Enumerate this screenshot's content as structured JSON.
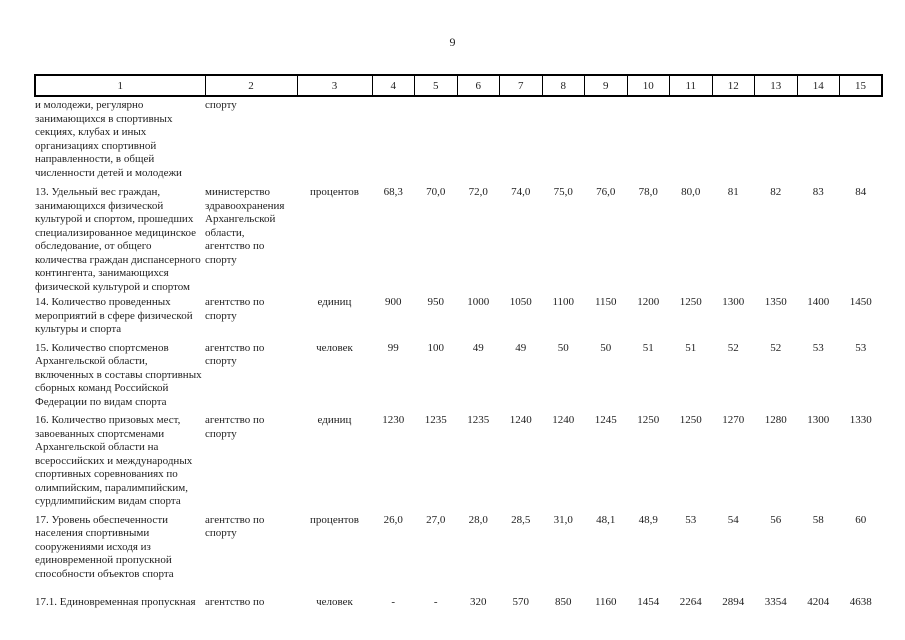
{
  "page": {
    "number": "9"
  },
  "table": {
    "header_cols": [
      "1",
      "2",
      "3",
      "4",
      "5",
      "6",
      "7",
      "8",
      "9",
      "10",
      "11",
      "12",
      "13",
      "14",
      "15"
    ],
    "rows": [
      {
        "indicator": "и молодежи, регулярно\nзанимающихся в спортивных\nсекциях, клубах и иных\nорганизациях спортивной\nнаправленности, в общей\nчисленности детей и молодежи",
        "executor": "спорту",
        "unit": "",
        "values": [
          "",
          "",
          "",
          "",
          "",
          "",
          "",
          "",
          "",
          "",
          "",
          ""
        ]
      },
      {
        "indicator": "13. Удельный вес граждан,\nзанимающихся физической\nкультурой и спортом, прошедших\nспециализированное медицинское\nобследование, от общего\nколичества граждан диспансерного\nконтингента, занимающихся\nфизической культурой и спортом",
        "executor": "министерство\nздравоохранения\nАрхангельской\nобласти,\nагентство по\nспорту",
        "unit": "процентов",
        "values": [
          "68,3",
          "70,0",
          "72,0",
          "74,0",
          "75,0",
          "76,0",
          "78,0",
          "80,0",
          "81",
          "82",
          "83",
          "84"
        ]
      },
      {
        "indicator": "14. Количество проведенных\nмероприятий в сфере физической\nкультуры и спорта",
        "executor": "агентство по\nспорту",
        "unit": "единиц",
        "values": [
          "900",
          "950",
          "1000",
          "1050",
          "1100",
          "1150",
          "1200",
          "1250",
          "1300",
          "1350",
          "1400",
          "1450"
        ]
      },
      {
        "indicator": "15. Количество спортсменов\nАрхангельской области,\nвключенных в составы спортивных\nсборных команд Российской\nФедерации по видам спорта",
        "executor": "агентство по\nспорту",
        "unit": "человек",
        "values": [
          "99",
          "100",
          "49",
          "49",
          "50",
          "50",
          "51",
          "51",
          "52",
          "52",
          "53",
          "53"
        ]
      },
      {
        "indicator": "16. Количество призовых мест,\nзавоеванных спортсменами\nАрхангельской области на\nвсероссийских и международных\nспортивных соревнованиях по\nолимпийским, паралимпийским,\nсурдлимпийским видам спорта",
        "executor": "агентство по\nспорту",
        "unit": "единиц",
        "values": [
          "1230",
          "1235",
          "1235",
          "1240",
          "1240",
          "1245",
          "1250",
          "1250",
          "1270",
          "1280",
          "1300",
          "1330"
        ]
      },
      {
        "indicator": "17. Уровень обеспеченности\nнаселения спортивными\nсооружениями исходя из\nединовременной пропускной\nспособности объектов спорта",
        "executor": "агентство по\nспорту",
        "unit": "процентов",
        "values": [
          "26,0",
          "27,0",
          "28,0",
          "28,5",
          "31,0",
          "48,1",
          "48,9",
          "53",
          "54",
          "56",
          "58",
          "60"
        ]
      },
      {
        "indicator": "17.1. Единовременная пропускная",
        "executor": "агентство по",
        "unit": "человек",
        "values": [
          "-",
          "-",
          "320",
          "570",
          "850",
          "1160",
          "1454",
          "2264",
          "2894",
          "3354",
          "4204",
          "4638"
        ]
      }
    ]
  }
}
